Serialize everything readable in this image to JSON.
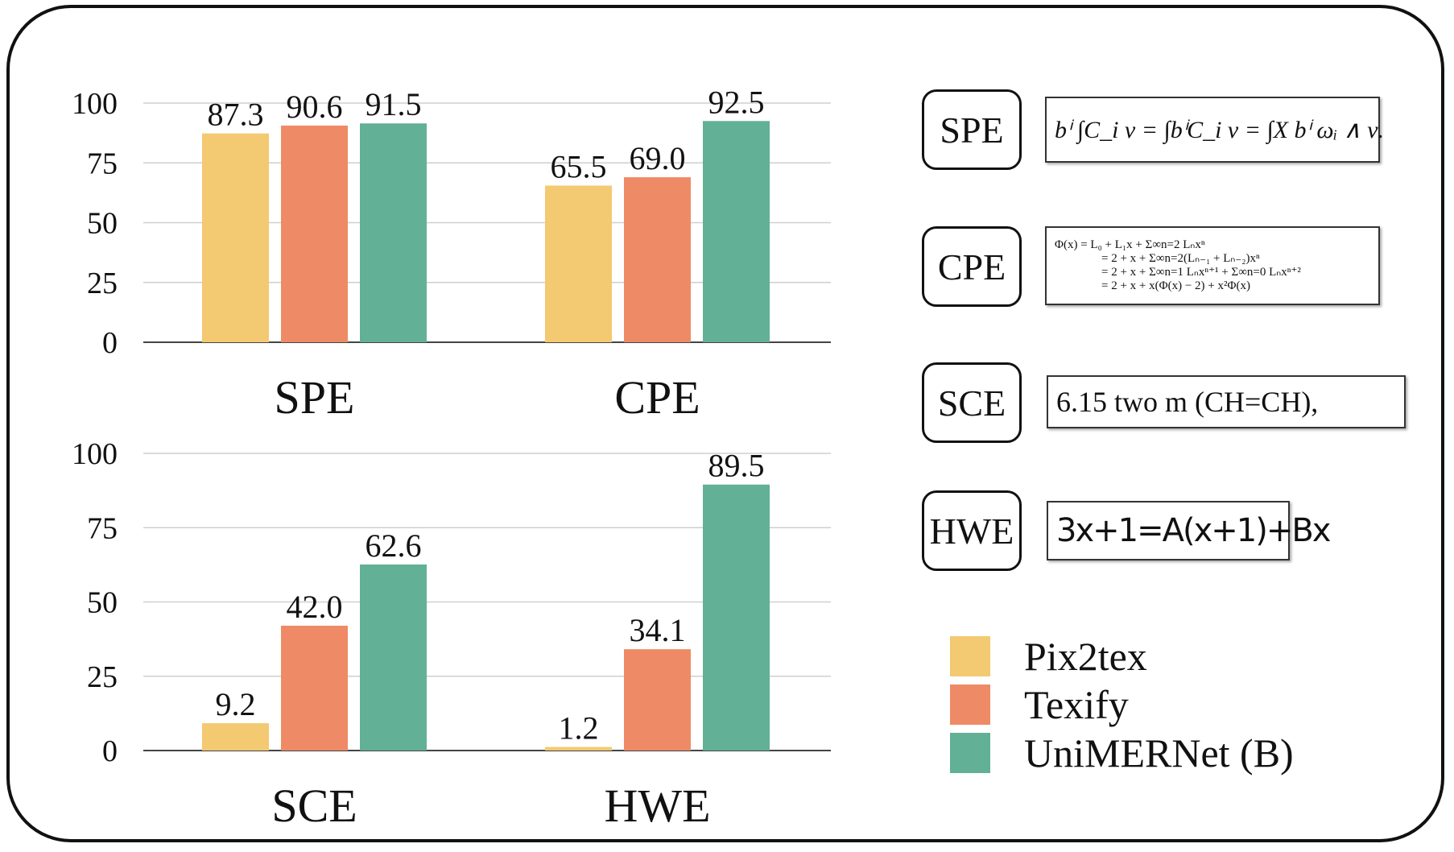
{
  "chart_data": [
    {
      "type": "bar",
      "title": "SPE",
      "categories": [
        "Pix2tex",
        "Texify",
        "UniMERNet (B)"
      ],
      "values": [
        87.3,
        90.6,
        91.5
      ],
      "labels": [
        "87.3",
        "90.6",
        "91.5"
      ],
      "ylim": [
        0,
        100
      ],
      "yticks": [
        "0",
        "25",
        "50",
        "75",
        "100"
      ]
    },
    {
      "type": "bar",
      "title": "CPE",
      "categories": [
        "Pix2tex",
        "Texify",
        "UniMERNet (B)"
      ],
      "values": [
        65.5,
        69.0,
        92.5
      ],
      "labels": [
        "65.5",
        "69.0",
        "92.5"
      ],
      "ylim": [
        0,
        100
      ]
    },
    {
      "type": "bar",
      "title": "SCE",
      "categories": [
        "Pix2tex",
        "Texify",
        "UniMERNet (B)"
      ],
      "values": [
        9.2,
        42.0,
        62.6
      ],
      "labels": [
        "9.2",
        "42.0",
        "62.6"
      ],
      "ylim": [
        0,
        100
      ],
      "yticks": [
        "0",
        "25",
        "50",
        "75",
        "100"
      ]
    },
    {
      "type": "bar",
      "title": "HWE",
      "categories": [
        "Pix2tex",
        "Texify",
        "UniMERNet (B)"
      ],
      "values": [
        1.2,
        34.1,
        89.5
      ],
      "labels": [
        "1.2",
        "34.1",
        "89.5"
      ],
      "ylim": [
        0,
        100
      ]
    }
  ],
  "legend": [
    {
      "name": "Pix2tex",
      "color": "#F3C971"
    },
    {
      "name": "Texify",
      "color": "#EE8B66"
    },
    {
      "name": "UniMERNet (B)",
      "color": "#62B096"
    }
  ],
  "samples": {
    "spe": {
      "tag": "SPE",
      "text": "bⁱ ∫C_i ν = ∫bⁱC_i ν = ∫X bⁱ ωᵢ ∧ ν."
    },
    "cpe": {
      "tag": "CPE",
      "lines": [
        "Φ(x)  = L₀ + L₁x + Σ∞n=2 Lₙxⁿ",
        "= 2 + x + Σ∞n=2(Lₙ₋₁ + Lₙ₋₂)xⁿ",
        "= 2 + x + Σ∞n=1 Lₙxⁿ⁺¹ + Σ∞n=0 Lₙxⁿ⁺²",
        "= 2 + x + x(Φ(x) − 2) + x²Φ(x)"
      ]
    },
    "sce": {
      "tag": "SCE",
      "text": "6.15  two  m  (CH=CH),"
    },
    "hwe": {
      "tag": "HWE",
      "text": "3x+1=A(x+1)+Bx"
    }
  }
}
